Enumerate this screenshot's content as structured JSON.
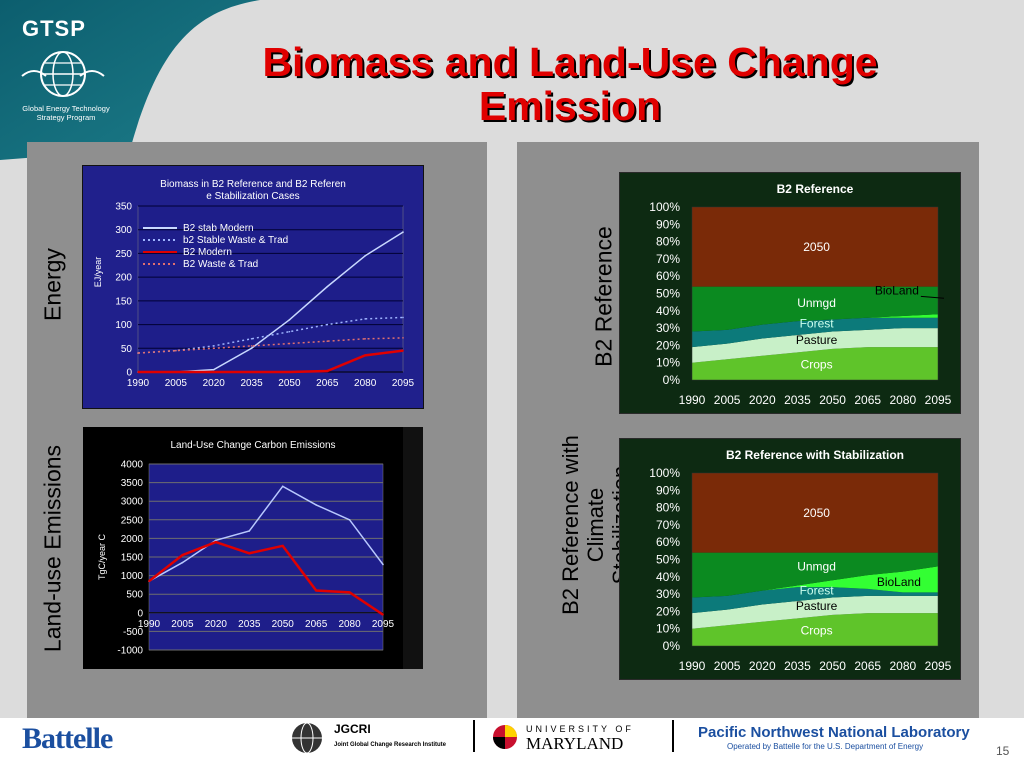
{
  "header": {
    "logo_text": "GTSP",
    "logo_subtitle": "Global Energy Technology Strategy Program",
    "title": "Biomass and Land-Use Change Emission"
  },
  "side_labels": {
    "energy": "Energy",
    "land_use": "Land-use Emissions",
    "b2_reference": "B2 Reference",
    "b2_stab_line1": "B2 Reference with",
    "b2_stab_line2": "Climate",
    "b2_stab_line3": "Stabilization"
  },
  "footer": {
    "battelle": "Battelle",
    "jgcri": "JGCRI",
    "jgcri_sub": "Joint Global Change Research Institute",
    "umd_top": "UNIVERSITY OF",
    "umd_main": "MARYLAND",
    "pnnl_main": "Pacific Northwest National Laboratory",
    "pnnl_sub": "Operated by Battelle for the U.S. Department of Energy",
    "page_number": "15"
  },
  "chart_data": [
    {
      "type": "line",
      "title": "Biomass in B2 Reference and B2 Reference Stabilization Cases",
      "ylabel": "EJ/year",
      "xlabel": "",
      "ylim": [
        0,
        350
      ],
      "yticks": [
        "0",
        "50",
        "100",
        "150",
        "200",
        "250",
        "300",
        "350"
      ],
      "x": [
        1990,
        2005,
        2020,
        2035,
        2050,
        2065,
        2080,
        2095
      ],
      "legend_position": "top-left",
      "series": [
        {
          "name": "B2 stab Modern",
          "color": "#c8d8ff",
          "dash": "solid",
          "values": [
            0,
            0,
            5,
            50,
            110,
            180,
            245,
            295
          ]
        },
        {
          "name": "b2 Stable Waste & Trad",
          "color": "#9fb4ff",
          "dash": "dotted",
          "values": [
            40,
            45,
            55,
            70,
            85,
            100,
            112,
            115
          ]
        },
        {
          "name": "B2 Modern",
          "color": "#e00000",
          "dash": "solid",
          "values": [
            0,
            0,
            0,
            0,
            0,
            2,
            35,
            45
          ]
        },
        {
          "name": "B2 Waste & Trad",
          "color": "#e07070",
          "dash": "dotted",
          "values": [
            40,
            45,
            50,
            55,
            60,
            65,
            70,
            72
          ]
        }
      ]
    },
    {
      "type": "line",
      "title": "Land-Use Change Carbon Emissions",
      "ylabel": "TgC/year C",
      "xlabel": "",
      "ylim": [
        -1000,
        4000
      ],
      "yticks": [
        "-1000",
        "-500",
        "0",
        "500",
        "1000",
        "1500",
        "2000",
        "2500",
        "3000",
        "3500",
        "4000"
      ],
      "x": [
        1990,
        2005,
        2020,
        2035,
        2050,
        2065,
        2080,
        2095
      ],
      "xaxis_at": 0,
      "series": [
        {
          "color": "#b8c8ff",
          "values": [
            850,
            1350,
            1950,
            2200,
            3400,
            2900,
            2500,
            1300
          ]
        },
        {
          "color": "#e00000",
          "values": [
            850,
            1550,
            1900,
            1600,
            1800,
            600,
            550,
            -50
          ]
        }
      ]
    },
    {
      "type": "area",
      "title": "B2 Reference",
      "ylim": [
        0,
        100
      ],
      "yticks": [
        "0%",
        "10%",
        "20%",
        "30%",
        "40%",
        "50%",
        "60%",
        "70%",
        "80%",
        "90%",
        "100%"
      ],
      "x": [
        1990,
        2005,
        2020,
        2035,
        2050,
        2065,
        2080,
        2095
      ],
      "layers": [
        {
          "name": "Crops",
          "color": "#5fc42a",
          "values": [
            10,
            12,
            14,
            16,
            18,
            19,
            19,
            19
          ]
        },
        {
          "name": "Pasture",
          "color": "#c8f0c8",
          "values": [
            9,
            9,
            10,
            10,
            10,
            10,
            11,
            11
          ]
        },
        {
          "name": "Forest",
          "color": "#0c7a7a",
          "values": [
            9,
            8,
            8,
            8,
            7,
            7,
            6,
            6
          ]
        },
        {
          "name": "BioLand",
          "color": "#33ff33",
          "values": [
            0,
            0,
            0,
            0,
            0,
            0,
            1,
            2
          ]
        },
        {
          "name": "Unmgd",
          "color": "#0b8a20",
          "values": [
            26,
            25,
            22,
            20,
            19,
            18,
            17,
            16
          ]
        },
        {
          "name": "2050",
          "color": "#7a2a08",
          "values": [
            46,
            46,
            46,
            46,
            46,
            46,
            46,
            46
          ]
        }
      ]
    },
    {
      "type": "area",
      "title": "B2 Reference with Stabilization",
      "ylim": [
        0,
        100
      ],
      "yticks": [
        "0%",
        "10%",
        "20%",
        "30%",
        "40%",
        "50%",
        "60%",
        "70%",
        "80%",
        "90%",
        "100%"
      ],
      "x": [
        1990,
        2005,
        2020,
        2035,
        2050,
        2065,
        2080,
        2095
      ],
      "layers": [
        {
          "name": "Crops",
          "color": "#5fc42a",
          "values": [
            10,
            12,
            14,
            16,
            18,
            19,
            19,
            19
          ]
        },
        {
          "name": "Pasture",
          "color": "#c8f0c8",
          "values": [
            9,
            9,
            10,
            10,
            10,
            10,
            10,
            10
          ]
        },
        {
          "name": "Forest",
          "color": "#0c7a7a",
          "values": [
            9,
            8,
            8,
            8,
            6,
            4,
            2,
            2
          ]
        },
        {
          "name": "BioLand",
          "color": "#33ff33",
          "values": [
            0,
            0,
            0,
            1,
            4,
            8,
            12,
            15
          ]
        },
        {
          "name": "Unmgd",
          "color": "#0b8a20",
          "values": [
            26,
            25,
            22,
            19,
            16,
            13,
            11,
            8
          ]
        },
        {
          "name": "2050",
          "color": "#7a2a08",
          "values": [
            46,
            46,
            46,
            46,
            46,
            46,
            46,
            46
          ]
        }
      ]
    }
  ]
}
